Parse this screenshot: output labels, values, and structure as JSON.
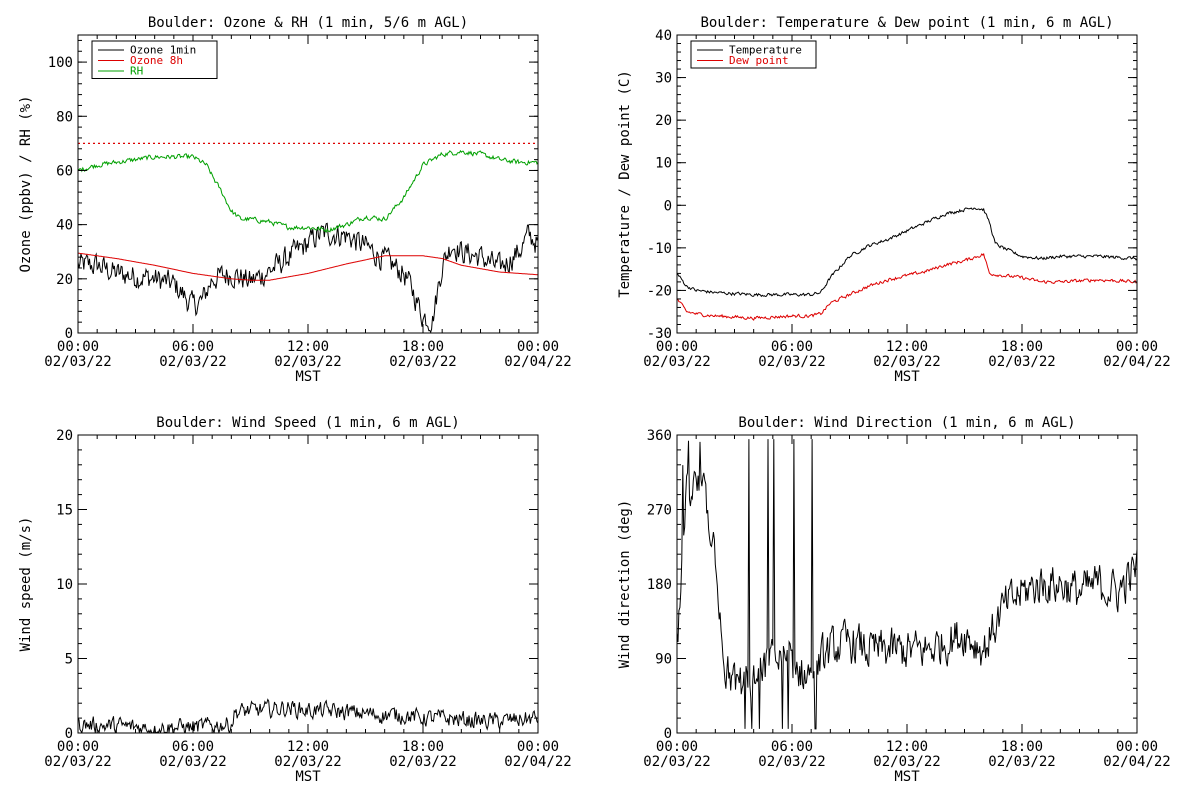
{
  "chart_data": [
    {
      "type": "line",
      "title": "Boulder: Ozone & RH (1 min, 5/6 m AGL)",
      "xlabel": "MST",
      "ylabel": "Ozone (ppbv) / RH (%)",
      "xlim": [
        0,
        24
      ],
      "ylim": [
        0,
        110
      ],
      "yticks": [
        0,
        20,
        40,
        60,
        80,
        100
      ],
      "x_tick_times": [
        "00:00",
        "06:00",
        "12:00",
        "18:00",
        "00:00"
      ],
      "x_tick_dates": [
        "02/03/22",
        "02/03/22",
        "02/03/22",
        "02/03/22",
        "02/04/22"
      ],
      "legend_position": "top-left",
      "reference_lines": [
        {
          "y": 70,
          "color": "#dd0000",
          "style": "dotted"
        }
      ],
      "series": [
        {
          "name": "Ozone 1min",
          "color": "#000000",
          "noise": 4,
          "x": [
            0,
            1,
            2,
            3,
            4,
            5,
            5.5,
            6,
            6.5,
            7,
            8,
            9,
            10,
            11,
            12,
            12.5,
            13,
            14,
            15,
            16,
            17,
            17.5,
            18,
            18.5,
            19,
            19.5,
            20,
            21,
            22,
            23,
            23.5,
            24
          ],
          "y": [
            25,
            25,
            22,
            21,
            20,
            18,
            14,
            10,
            12,
            20,
            22,
            19,
            23,
            28,
            33,
            36,
            37,
            36,
            32,
            27,
            22,
            15,
            6,
            5,
            25,
            33,
            30,
            28,
            24,
            30,
            36,
            33
          ]
        },
        {
          "name": "Ozone 8h",
          "color": "#dd0000",
          "noise": 0,
          "x": [
            0,
            2,
            4,
            6,
            8,
            9,
            10,
            12,
            14,
            16,
            17,
            18,
            19,
            20,
            22,
            24
          ],
          "y": [
            29.5,
            27.5,
            25,
            22,
            20,
            19.5,
            19.5,
            22,
            25.5,
            28.5,
            28.5,
            28.5,
            27.5,
            25,
            22.5,
            21.5
          ]
        },
        {
          "name": "RH",
          "color": "#00a000",
          "noise": 0.8,
          "x": [
            0,
            1,
            2,
            3,
            4,
            5,
            6,
            6.7,
            7,
            7.5,
            8,
            8.5,
            9,
            10,
            11,
            12,
            13,
            14,
            15,
            16,
            17,
            18,
            19,
            20,
            21,
            22,
            23,
            24
          ],
          "y": [
            60,
            62,
            63,
            64,
            65,
            65,
            65,
            62,
            58,
            52,
            45,
            42,
            42,
            41,
            39,
            39,
            38,
            40,
            43,
            42,
            50,
            62,
            66,
            67,
            66,
            64,
            63,
            63
          ]
        }
      ]
    },
    {
      "type": "line",
      "title": "Boulder: Temperature & Dew point (1 min, 6 m AGL)",
      "xlabel": "MST",
      "ylabel": "Temperature / Dew point (C)",
      "xlim": [
        0,
        24
      ],
      "ylim": [
        -30,
        40
      ],
      "yticks": [
        -30,
        -20,
        -10,
        0,
        10,
        20,
        30,
        40
      ],
      "x_tick_times": [
        "00:00",
        "06:00",
        "12:00",
        "18:00",
        "00:00"
      ],
      "x_tick_dates": [
        "02/03/22",
        "02/03/22",
        "02/03/22",
        "02/03/22",
        "02/04/22"
      ],
      "legend_position": "top-left",
      "series": [
        {
          "name": "Temperature",
          "color": "#000000",
          "noise": 0.35,
          "x": [
            0,
            0.5,
            1,
            2,
            4,
            6,
            7,
            7.5,
            8,
            9,
            10,
            11,
            12,
            13,
            14,
            15,
            15.5,
            16,
            16.3,
            16.6,
            17,
            18,
            19,
            20,
            22,
            24
          ],
          "y": [
            -16,
            -19,
            -20,
            -20.5,
            -21,
            -21,
            -21,
            -20.5,
            -17,
            -12,
            -9.5,
            -8,
            -6,
            -4,
            -2,
            -1,
            -0.5,
            -1,
            -4,
            -9,
            -10,
            -12,
            -12.5,
            -12,
            -12,
            -12.5
          ]
        },
        {
          "name": "Dew point",
          "color": "#dd0000",
          "noise": 0.35,
          "x": [
            0,
            0.5,
            1,
            2,
            4,
            6,
            7,
            7.5,
            8,
            9,
            10,
            11,
            12,
            13,
            14,
            15,
            16,
            16.3,
            17,
            18,
            19,
            20,
            22,
            24
          ],
          "y": [
            -22,
            -25,
            -25.5,
            -26,
            -26.5,
            -26,
            -26,
            -25.5,
            -23,
            -21,
            -19,
            -17.5,
            -16.5,
            -15.5,
            -14,
            -13,
            -11.5,
            -16,
            -16.5,
            -17,
            -18,
            -18,
            -17.5,
            -18
          ]
        }
      ]
    },
    {
      "type": "line",
      "title": "Boulder: Wind Speed (1 min, 6 m AGL)",
      "xlabel": "MST",
      "ylabel": "Wind speed (m/s)",
      "xlim": [
        0,
        24
      ],
      "ylim": [
        0,
        20
      ],
      "yticks": [
        0,
        5,
        10,
        15,
        20
      ],
      "x_tick_times": [
        "00:00",
        "06:00",
        "12:00",
        "18:00",
        "00:00"
      ],
      "x_tick_dates": [
        "02/03/22",
        "02/03/22",
        "02/03/22",
        "02/03/22",
        "02/04/22"
      ],
      "series": [
        {
          "name": "",
          "color": "#000000",
          "noise": 0.5,
          "x": [
            0,
            1,
            2,
            3,
            4,
            5,
            6,
            7,
            8,
            8.2,
            9,
            10,
            11,
            12,
            13,
            14,
            15,
            16,
            17,
            18,
            19,
            20,
            21,
            22,
            23,
            24
          ],
          "y": [
            0.6,
            0.5,
            0.5,
            0.4,
            0.3,
            0.4,
            0.4,
            0.5,
            0.6,
            1.4,
            1.5,
            1.6,
            1.7,
            1.5,
            1.5,
            1.4,
            1.3,
            1.2,
            1.2,
            1.0,
            1.0,
            0.9,
            0.8,
            0.8,
            0.9,
            1.0
          ]
        }
      ]
    },
    {
      "type": "line",
      "title": "Boulder: Wind Direction (1 min, 6 m AGL)",
      "xlabel": "MST",
      "ylabel": "Wind direction (deg)",
      "xlim": [
        0,
        24
      ],
      "ylim": [
        0,
        360
      ],
      "yticks": [
        0,
        90,
        180,
        270,
        360
      ],
      "x_tick_times": [
        "00:00",
        "06:00",
        "12:00",
        "18:00",
        "00:00"
      ],
      "x_tick_dates": [
        "02/03/22",
        "02/03/22",
        "02/03/22",
        "02/03/22",
        "02/04/22"
      ],
      "series": [
        {
          "name": "",
          "color": "#000000",
          "noise": 22,
          "x": [
            0,
            0.5,
            1,
            1.5,
            2,
            2.5,
            3,
            4,
            5,
            6,
            7,
            7.5,
            8,
            9,
            10,
            11,
            12,
            13,
            14,
            15,
            16,
            17,
            18,
            19,
            20,
            21,
            22,
            23,
            24
          ],
          "y": [
            100,
            280,
            300,
            280,
            220,
            80,
            60,
            60,
            90,
            80,
            70,
            90,
            100,
            110,
            100,
            100,
            100,
            100,
            110,
            120,
            100,
            150,
            170,
            180,
            180,
            170,
            180,
            170,
            200
          ]
        }
      ]
    }
  ]
}
